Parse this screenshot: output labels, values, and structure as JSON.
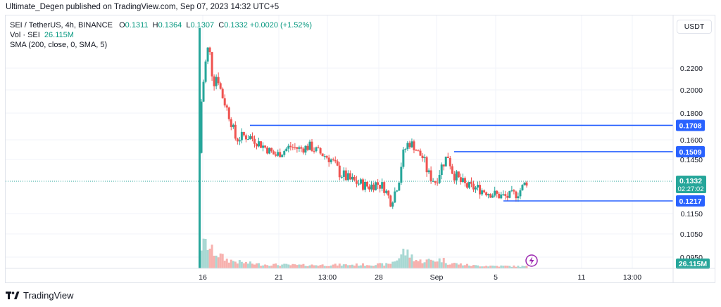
{
  "header": {
    "text": "Ultimate_Degen published on TradingView.com, Sep 07, 2023 14:32 UTC+5"
  },
  "legend": {
    "symbol": "SEI / TetherUS, 4h, BINANCE",
    "o_label": "O",
    "o": "0.1311",
    "h_label": "H",
    "h": "0.1364",
    "l_label": "L",
    "l": "0.1307",
    "c_label": "C",
    "c": "0.1332",
    "change": "+0.0020 (+1.52%)",
    "vol_label": "Vol · SEI",
    "vol": "26.115M",
    "sma": "SMA (200, close, 0, SMA, 5)"
  },
  "currency_button": "USDT",
  "footer": {
    "brand": "TradingView"
  },
  "colors": {
    "up": "#26a69a",
    "down": "#ef5350",
    "level": "#2962ff",
    "vol_up": "#a8d8d3",
    "vol_down": "#f7b1ae"
  },
  "chart_data": {
    "type": "candlestick",
    "symbol": "SEI/USDT",
    "interval": "4h",
    "y_ticks": [
      "0.2200",
      "0.2000",
      "0.1800",
      "0.1600",
      "0.1450",
      "0.1150",
      "0.1050",
      "0.0950"
    ],
    "x_ticks": [
      "16",
      "21",
      "13:00",
      "28",
      "Sep",
      "5",
      "11",
      "13:00"
    ],
    "horizontal_levels": [
      {
        "label": "0.1708",
        "value": 0.1708
      },
      {
        "label": "0.1509",
        "value": 0.1509
      },
      {
        "label": "0.1217",
        "value": 0.1217
      }
    ],
    "last_price": {
      "label": "0.1332",
      "countdown": "02:27:02"
    },
    "volume_label": "26.115M",
    "close_path": [
      [
        0.0,
        0.19
      ],
      [
        0.006,
        0.215
      ],
      [
        0.012,
        0.238
      ],
      [
        0.018,
        0.232
      ],
      [
        0.024,
        0.205
      ],
      [
        0.032,
        0.215
      ],
      [
        0.04,
        0.198
      ],
      [
        0.05,
        0.186
      ],
      [
        0.06,
        0.174
      ],
      [
        0.07,
        0.16
      ],
      [
        0.085,
        0.163
      ],
      [
        0.1,
        0.162
      ],
      [
        0.115,
        0.158
      ],
      [
        0.13,
        0.154
      ],
      [
        0.15,
        0.148
      ],
      [
        0.165,
        0.151
      ],
      [
        0.18,
        0.155
      ],
      [
        0.2,
        0.153
      ],
      [
        0.22,
        0.155
      ],
      [
        0.24,
        0.15
      ],
      [
        0.26,
        0.146
      ],
      [
        0.28,
        0.138
      ],
      [
        0.3,
        0.134
      ],
      [
        0.32,
        0.132
      ],
      [
        0.34,
        0.13
      ],
      [
        0.355,
        0.132
      ],
      [
        0.37,
        0.13
      ],
      [
        0.385,
        0.121
      ],
      [
        0.4,
        0.133
      ],
      [
        0.41,
        0.15
      ],
      [
        0.42,
        0.158
      ],
      [
        0.43,
        0.156
      ],
      [
        0.44,
        0.15
      ],
      [
        0.45,
        0.146
      ],
      [
        0.46,
        0.137
      ],
      [
        0.475,
        0.133
      ],
      [
        0.49,
        0.143
      ],
      [
        0.5,
        0.148
      ],
      [
        0.51,
        0.138
      ],
      [
        0.525,
        0.133
      ],
      [
        0.54,
        0.13
      ],
      [
        0.56,
        0.129
      ],
      [
        0.58,
        0.127
      ],
      [
        0.6,
        0.125
      ],
      [
        0.62,
        0.124
      ],
      [
        0.64,
        0.126
      ],
      [
        0.65,
        0.129
      ],
      [
        0.66,
        0.1332
      ]
    ],
    "volume_profile": [
      [
        0.0,
        0.55
      ],
      [
        0.01,
        0.62
      ],
      [
        0.02,
        0.45
      ],
      [
        0.03,
        0.38
      ],
      [
        0.05,
        0.22
      ],
      [
        0.08,
        0.15
      ],
      [
        0.12,
        0.1
      ],
      [
        0.2,
        0.08
      ],
      [
        0.3,
        0.09
      ],
      [
        0.38,
        0.1
      ],
      [
        0.4,
        0.25
      ],
      [
        0.41,
        0.42
      ],
      [
        0.42,
        0.36
      ],
      [
        0.44,
        0.18
      ],
      [
        0.49,
        0.22
      ],
      [
        0.5,
        0.14
      ],
      [
        0.55,
        0.07
      ],
      [
        0.6,
        0.06
      ],
      [
        0.66,
        0.05
      ]
    ]
  }
}
